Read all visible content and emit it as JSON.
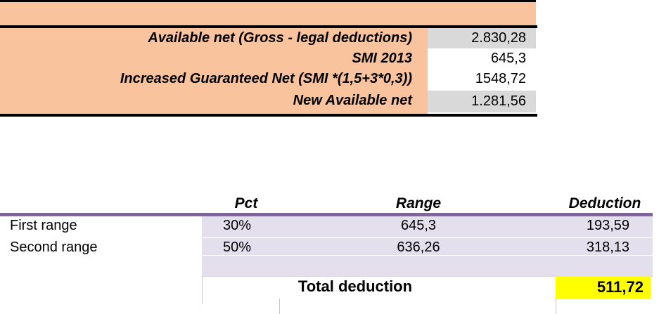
{
  "summary": {
    "rows": [
      {
        "label": "Available net (Gross - legal deductions)",
        "value": "2.830,28"
      },
      {
        "label": "SMI 2013",
        "value": "645,3"
      },
      {
        "label": "Increased Guaranteed Net (SMI *(1,5+3*0,3))",
        "value": "1548,72"
      },
      {
        "label": "New Available net",
        "value": "1.281,56"
      }
    ]
  },
  "deductions": {
    "headers": {
      "pct": "Pct",
      "range": "Range",
      "deduction": "Deduction"
    },
    "rows": [
      {
        "name": "First range",
        "pct": "30%",
        "range": "645,3",
        "deduction": "193,59"
      },
      {
        "name": "Second range",
        "pct": "50%",
        "range": "636,26",
        "deduction": "318,13"
      }
    ],
    "total_label": "Total deduction",
    "total_value": "511,72"
  },
  "colors": {
    "peach": "#f9c39d",
    "grey": "#d9d9d9",
    "lavender": "#e4dfec",
    "purple": "#8064a2",
    "highlight_yellow": "#ffff00"
  }
}
